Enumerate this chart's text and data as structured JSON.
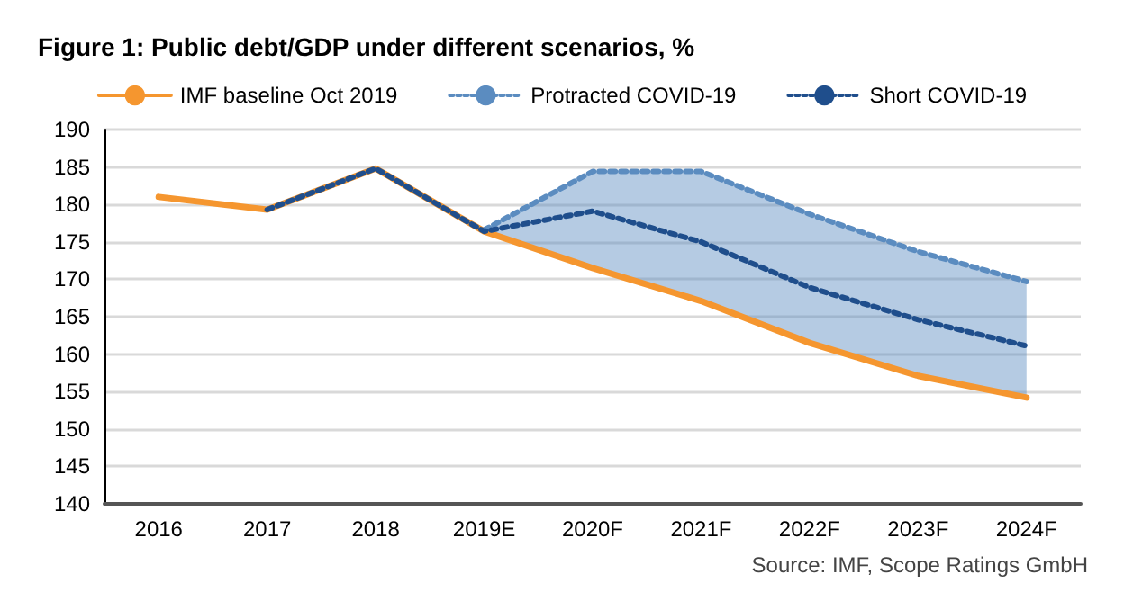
{
  "chart_data": {
    "type": "line",
    "title": "Figure 1: Public debt/GDP under different scenarios, %",
    "categories": [
      "2016",
      "2017",
      "2018",
      "2019E",
      "2020F",
      "2021F",
      "2022F",
      "2023F",
      "2024F"
    ],
    "series": [
      {
        "name": "IMF baseline Oct 2019",
        "color": "#f5962f",
        "line_style": "solid",
        "values": [
          181,
          179.3,
          184.8,
          176.4,
          171.5,
          167.1,
          161.5,
          157.1,
          154.2
        ]
      },
      {
        "name": "Protracted COVID-19",
        "color": "#5b8cc0",
        "line_style": "dotted",
        "values": [
          null,
          null,
          null,
          176.6,
          184.4,
          184.4,
          178.7,
          173.7,
          169.7
        ],
        "lower": [
          null,
          null,
          null,
          176.4,
          171.5,
          167.1,
          161.5,
          157.1,
          154.2
        ],
        "upper": [
          null,
          null,
          null,
          176.6,
          184.4,
          184.4,
          178.7,
          173.7,
          169.7
        ]
      },
      {
        "name": "Short COVID-19",
        "color": "#1f4e8c",
        "line_style": "dotted",
        "values": [
          null,
          179.3,
          184.8,
          176.4,
          179.1,
          175,
          168.9,
          164.6,
          161.1
        ]
      }
    ],
    "ylim": [
      140,
      190
    ],
    "yticks": [
      140,
      145,
      150,
      155,
      160,
      165,
      170,
      175,
      180,
      185,
      190
    ],
    "grid": "y",
    "legend": "top",
    "marker": "none",
    "annotations": [
      "Source: IMF, Scope Ratings GmbH"
    ]
  }
}
